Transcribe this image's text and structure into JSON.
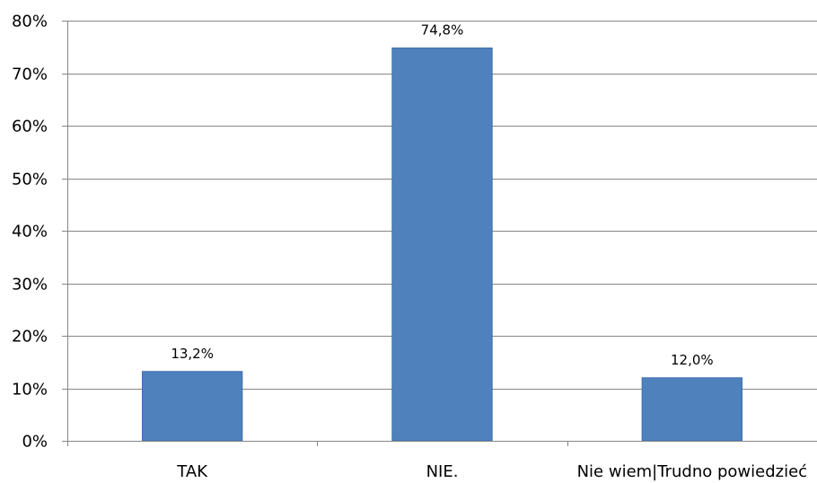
{
  "chart_data": {
    "type": "bar",
    "categories": [
      "TAK",
      "NIE.",
      "Nie wiem|Trudno powiedzieć"
    ],
    "values": [
      13.2,
      74.8,
      12.0
    ],
    "data_labels": [
      "13,2%",
      "74,8%",
      "12,0%"
    ],
    "y_tick_labels": [
      "0%",
      "10%",
      "20%",
      "30%",
      "40%",
      "50%",
      "60%",
      "70%",
      "80%"
    ],
    "y_ticks": [
      0,
      10,
      20,
      30,
      40,
      50,
      60,
      70,
      80
    ],
    "ylim": [
      0,
      80
    ],
    "grid": true,
    "legend": "none",
    "title": "",
    "xlabel": "",
    "ylabel": "",
    "colors": {
      "bar": "#4F81BD",
      "bar_edge": "#3C6EAD",
      "grid": "#868686",
      "text": "#000000"
    }
  }
}
